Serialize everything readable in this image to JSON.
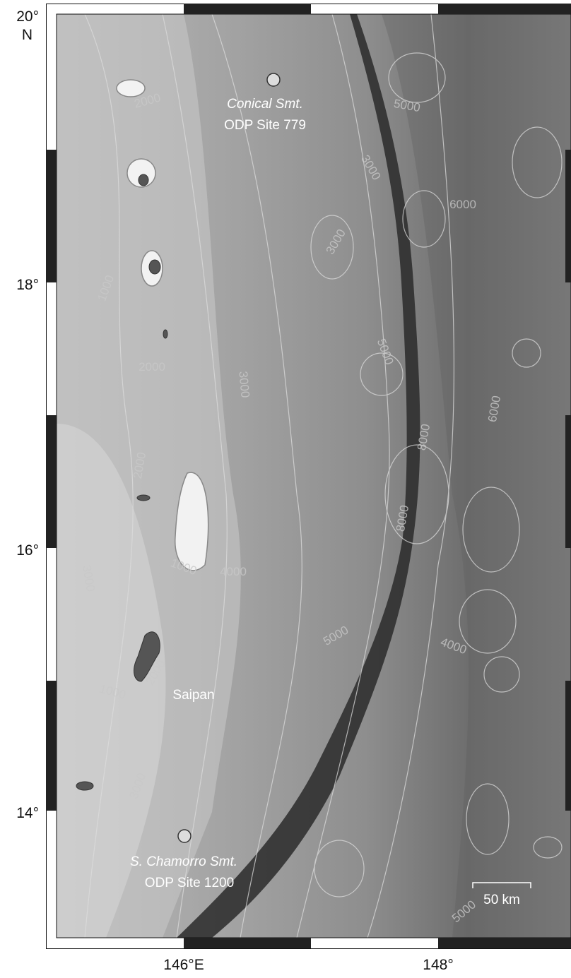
{
  "map": {
    "latitude_labels": [
      "20°",
      "18°",
      "16°",
      "14°"
    ],
    "hemisphere_label": "N",
    "longitude_labels": [
      "146°E",
      "148°"
    ],
    "sites": [
      {
        "name": "Conical Smt.",
        "label": "ODP Site 779"
      },
      {
        "name": "S. Chamorro Smt.",
        "label": "ODP Site 1200"
      }
    ],
    "place_labels": [
      "Saipan"
    ],
    "scale_bar": "50 km",
    "contour_labels": [
      "2000",
      "5000",
      "3000",
      "6000",
      "3000",
      "1000",
      "2000",
      "3000",
      "5000",
      "8000",
      "6000",
      "2000",
      "3000",
      "1000",
      "4000",
      "5000",
      "4000",
      "1000",
      "2000",
      "3000",
      "8000",
      "5000"
    ]
  }
}
